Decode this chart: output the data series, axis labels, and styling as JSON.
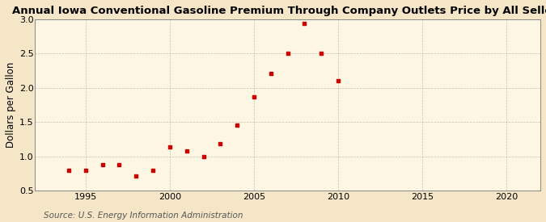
{
  "title": "Annual Iowa Conventional Gasoline Premium Through Company Outlets Price by All Sellers",
  "ylabel": "Dollars per Gallon",
  "source": "Source: U.S. Energy Information Administration",
  "fig_background_color": "#f5e6c8",
  "plot_background_color": "#fdf6e3",
  "marker_color": "#cc0000",
  "years": [
    1994,
    1995,
    1996,
    1997,
    1998,
    1999,
    2000,
    2001,
    2002,
    2003,
    2004,
    2005,
    2006,
    2007,
    2008,
    2009,
    2010
  ],
  "values": [
    0.8,
    0.8,
    0.88,
    0.88,
    0.71,
    0.79,
    1.14,
    1.08,
    1.0,
    1.18,
    1.46,
    1.87,
    2.21,
    2.5,
    2.94,
    2.5,
    2.1
  ],
  "xlim": [
    1992,
    2022
  ],
  "ylim": [
    0.5,
    3.0
  ],
  "xticks": [
    1995,
    2000,
    2005,
    2010,
    2015,
    2020
  ],
  "yticks": [
    0.5,
    1.0,
    1.5,
    2.0,
    2.5,
    3.0
  ],
  "title_fontsize": 9.5,
  "ylabel_fontsize": 8.5,
  "tick_fontsize": 8,
  "source_fontsize": 7.5,
  "grid_color": "#aaaaaa",
  "spine_color": "#888888"
}
